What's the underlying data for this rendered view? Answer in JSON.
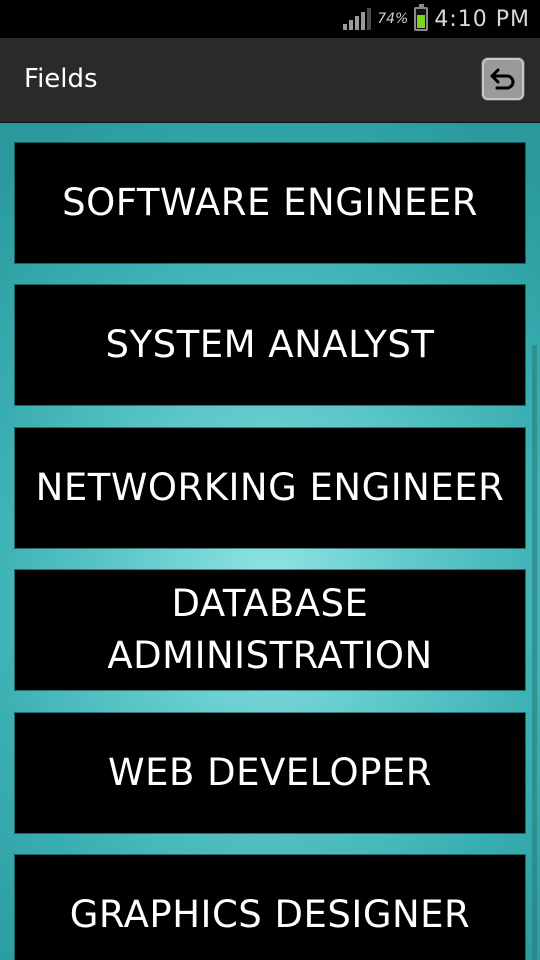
{
  "status_bar": {
    "battery_percent": "74%",
    "time": "4:10 PM",
    "battery_level": 0.74,
    "battery_color": "#7ed321"
  },
  "action_bar": {
    "title": "Fields",
    "back_icon": "undo-arrow-icon"
  },
  "fields": [
    {
      "label": "SOFTWARE ENGINEER"
    },
    {
      "label": "SYSTEM ANALYST"
    },
    {
      "label": "NETWORKING ENGINEER"
    },
    {
      "label": "DATABASE\nADMINISTRATION"
    },
    {
      "label": "WEB DEVELOPER"
    },
    {
      "label": "GRAPHICS DESIGNER"
    }
  ],
  "colors": {
    "background_teal": "#39aeb2",
    "item_background": "#000000",
    "item_text": "#ffffff"
  }
}
